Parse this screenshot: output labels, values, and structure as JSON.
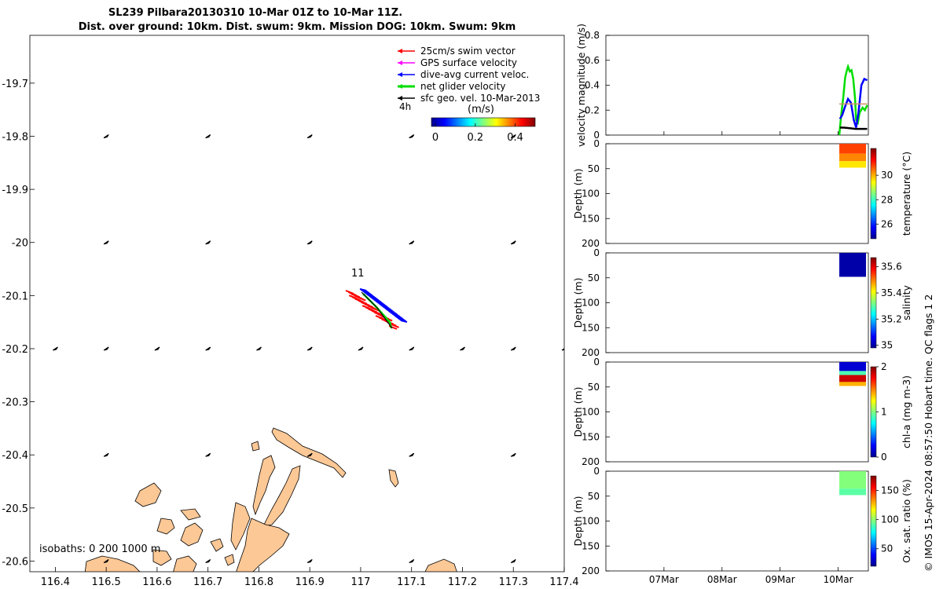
{
  "title": {
    "line1": "SL239 Pilbara20130310 10-Mar 01Z to 10-Mar 11Z.",
    "line2": "Dist. over ground: 10km. Dist. swum: 9km. Mission DOG: 10km. Swum: 9km"
  },
  "side_note": "© IMOS 15-Apr-2024 08:57:50 Hobart time. QC flags 1 2",
  "map": {
    "xticks": [
      "116.4",
      "116.5",
      "116.6",
      "116.7",
      "116.8",
      "116.9",
      "117",
      "117.1",
      "117.2",
      "117.3",
      "117.4"
    ],
    "yticks": [
      "-19.7",
      "-19.8",
      "-19.9",
      "-20",
      "-20.1",
      "-20.2",
      "-20.3",
      "-20.4",
      "-20.5",
      "-20.6"
    ],
    "xlim": [
      116.35,
      117.4
    ],
    "ylim": [
      -20.62,
      -19.61
    ],
    "legend": [
      {
        "label": "25cm/s swim vector",
        "color": "#ff0000"
      },
      {
        "label": "GPS surface velocity",
        "color": "#ff00ff"
      },
      {
        "label": "dive-avg current veloc.",
        "color": "#0000ff"
      },
      {
        "label": "net glider velocity",
        "color": "#00dd00"
      },
      {
        "label": "sfc geo. vel. 10-Mar-2013",
        "color": "#000000"
      }
    ],
    "time_label": "4h",
    "colorbar": {
      "title": "(m/s)",
      "ticks": [
        "0",
        "0.2",
        "0.4"
      ],
      "range": [
        -0.02,
        0.5
      ]
    },
    "track_label": "11",
    "isobath_label": "isobaths: 0   200 1000 m",
    "land_color": "#fcc896"
  },
  "chart_data": [
    {
      "type": "line",
      "ylabel": "velocity magnitude (m/s)",
      "ylim": [
        0,
        0.8
      ],
      "yticks": [
        "0",
        "0.2",
        "0.4",
        "0.6",
        "0.8"
      ],
      "x_domain": [
        "2013-03-06",
        "2013-03-10 12:00"
      ],
      "xticks": [
        "07Mar",
        "08Mar",
        "09Mar",
        "10Mar"
      ],
      "series": [
        {
          "color": "#00dd00",
          "x": [
            4.02,
            4.05,
            4.09,
            4.12,
            4.15,
            4.17,
            4.2,
            4.23,
            4.26,
            4.29,
            4.31,
            4.34,
            4.37,
            4.42,
            4.46,
            4.5
          ],
          "y": [
            0,
            0.15,
            0.31,
            0.46,
            0.52,
            0.55,
            0.51,
            0.52,
            0.45,
            0.3,
            0.12,
            0.1,
            0.18,
            0.22,
            0.2,
            0.24
          ]
        },
        {
          "color": "#0000ff",
          "x": [
            4.03,
            4.07,
            4.12,
            4.17,
            4.22,
            4.27,
            4.31,
            4.35,
            4.4,
            4.45,
            4.5
          ],
          "y": [
            0.13,
            0.16,
            0.23,
            0.29,
            0.26,
            0.12,
            0.06,
            0.18,
            0.4,
            0.45,
            0.44
          ]
        },
        {
          "color": "#d09060",
          "x": [
            4.02,
            4.5
          ],
          "y": [
            0.25,
            0.25
          ]
        },
        {
          "color": "#000000",
          "x": [
            4.03,
            4.1,
            4.2,
            4.3,
            4.4,
            4.5
          ],
          "y": [
            0.06,
            0.06,
            0.055,
            0.05,
            0.05,
            0.05
          ]
        }
      ]
    },
    {
      "type": "heatmap",
      "ylabel": "Depth (m)",
      "cblabel": "temperature (°C)",
      "ylim": [
        0,
        200
      ],
      "yticks": [
        "0",
        "50",
        "100",
        "150",
        "200"
      ],
      "cbticks": [
        "26",
        "28",
        "30"
      ],
      "cbrange": [
        24.8,
        32.2
      ],
      "x_range": [
        4.02,
        4.48
      ],
      "depth_range": [
        0,
        48
      ],
      "layers": [
        {
          "depth_from": 0,
          "depth_to": 20,
          "value": 30.8
        },
        {
          "depth_from": 20,
          "depth_to": 35,
          "value": 30.3
        },
        {
          "depth_from": 35,
          "depth_to": 48,
          "value": 29.6
        }
      ]
    },
    {
      "type": "heatmap",
      "ylabel": "Depth (m)",
      "cblabel": "salinity",
      "ylim": [
        0,
        200
      ],
      "yticks": [
        "0",
        "50",
        "100",
        "150",
        "200"
      ],
      "cbticks": [
        "35",
        "35.2",
        "35.4",
        "35.6"
      ],
      "cbrange": [
        34.98,
        35.67
      ],
      "x_range": [
        4.02,
        4.48
      ],
      "depth_range": [
        0,
        48
      ],
      "layers": [
        {
          "depth_from": 0,
          "depth_to": 48,
          "value": 35.0
        }
      ]
    },
    {
      "type": "heatmap",
      "ylabel": "Depth (m)",
      "cblabel": "chl-a (mg m-3)",
      "ylim": [
        0,
        200
      ],
      "yticks": [
        "0",
        "50",
        "100",
        "150",
        "200"
      ],
      "cbticks": [
        "0",
        "1",
        "2"
      ],
      "cbrange": [
        0,
        2
      ],
      "x_range": [
        4.02,
        4.48
      ],
      "depth_range": [
        0,
        48
      ],
      "layers": [
        {
          "depth_from": 0,
          "depth_to": 18,
          "value": 0.15
        },
        {
          "depth_from": 18,
          "depth_to": 26,
          "value": 0.9
        },
        {
          "depth_from": 26,
          "depth_to": 40,
          "value": 1.85
        },
        {
          "depth_from": 40,
          "depth_to": 48,
          "value": 1.4
        }
      ]
    },
    {
      "type": "heatmap",
      "ylabel": "Depth (m)",
      "cblabel": "Ox. sat. ratio (%)",
      "ylim": [
        0,
        200
      ],
      "yticks": [
        "0",
        "50",
        "100",
        "150",
        "200"
      ],
      "cbticks": [
        "50",
        "100",
        "150"
      ],
      "cbrange": [
        20,
        175
      ],
      "x_range": [
        4.02,
        4.48
      ],
      "depth_range": [
        0,
        48
      ],
      "layers": [
        {
          "depth_from": 0,
          "depth_to": 35,
          "value": 98
        },
        {
          "depth_from": 35,
          "depth_to": 48,
          "value": 92
        }
      ]
    }
  ]
}
